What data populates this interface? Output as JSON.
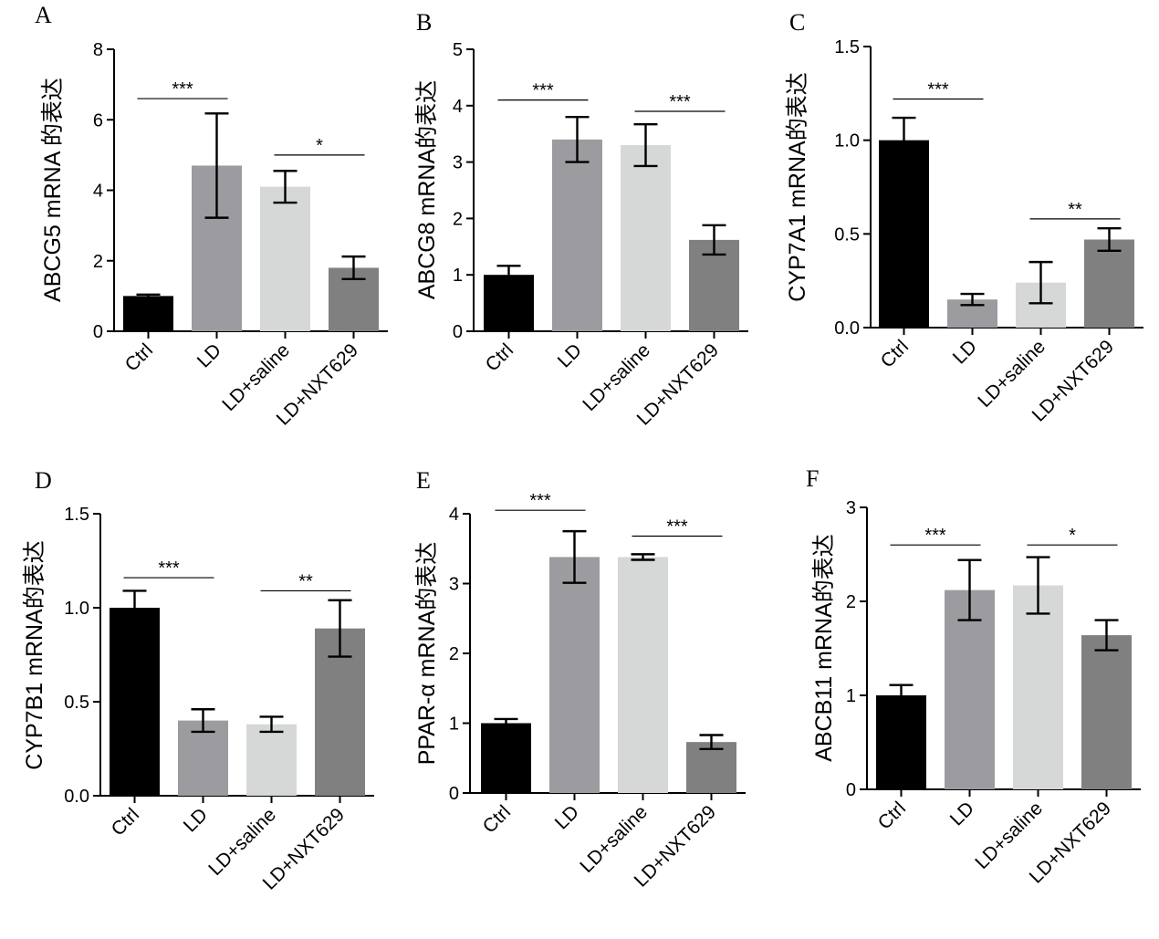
{
  "figure": {
    "panels": [
      "A",
      "B",
      "C",
      "D",
      "E",
      "F"
    ]
  },
  "chart_data": [
    {
      "panel": "A",
      "type": "bar",
      "ylabel": "ABCG5 mRNA 的表达",
      "categories": [
        "Ctrl",
        "LD",
        "LD+saline",
        "LD+NXT629"
      ],
      "values": [
        1.0,
        4.7,
        4.1,
        1.8
      ],
      "errors": [
        0.04,
        1.48,
        0.45,
        0.32
      ],
      "ylim": [
        0,
        8
      ],
      "yticks": [
        0,
        2,
        4,
        6,
        8
      ],
      "tick_labels": [
        "0",
        "2",
        "4",
        "6",
        "8"
      ],
      "colors": [
        "#000000",
        "#9c9ca0",
        "#d6d7d7",
        "#808080"
      ],
      "significance": [
        {
          "from": 0,
          "to": 1,
          "label": "***",
          "y": 6.6
        },
        {
          "from": 2,
          "to": 3,
          "label": "*",
          "y": 5.0
        }
      ]
    },
    {
      "panel": "B",
      "type": "bar",
      "ylabel": "ABCG8 mRNA的表达",
      "categories": [
        "Ctrl",
        "LD",
        "LD+saline",
        "LD+NXT629"
      ],
      "values": [
        1.0,
        3.4,
        3.3,
        1.62
      ],
      "errors": [
        0.16,
        0.4,
        0.37,
        0.26
      ],
      "ylim": [
        0,
        5
      ],
      "yticks": [
        0,
        1,
        2,
        3,
        4,
        5
      ],
      "tick_labels": [
        "0",
        "1",
        "2",
        "3",
        "4",
        "5"
      ],
      "colors": [
        "#000000",
        "#9c9ca0",
        "#d6d7d7",
        "#808080"
      ],
      "significance": [
        {
          "from": 0,
          "to": 1,
          "label": "***",
          "y": 4.1
        },
        {
          "from": 2,
          "to": 3,
          "label": "***",
          "y": 3.9
        }
      ]
    },
    {
      "panel": "C",
      "type": "bar",
      "ylabel": "CYP7A1 mRNA的表达",
      "categories": [
        "Ctrl",
        "LD",
        "LD+saline",
        "LD+NXT629"
      ],
      "values": [
        1.0,
        0.15,
        0.24,
        0.47
      ],
      "errors": [
        0.12,
        0.03,
        0.11,
        0.06
      ],
      "ylim": [
        0,
        1.5
      ],
      "yticks": [
        0,
        0.5,
        1.0,
        1.5
      ],
      "tick_labels": [
        "0.0",
        "0.5",
        "1.0",
        "1.5"
      ],
      "colors": [
        "#000000",
        "#9c9ca0",
        "#d6d7d7",
        "#808080"
      ],
      "significance": [
        {
          "from": 0,
          "to": 1,
          "label": "***",
          "y": 1.22
        },
        {
          "from": 2,
          "to": 3,
          "label": "**",
          "y": 0.58
        }
      ]
    },
    {
      "panel": "D",
      "type": "bar",
      "ylabel": "CYP7B1 mRNA的表达",
      "categories": [
        "Ctrl",
        "LD",
        "LD+saline",
        "LD+NXT629"
      ],
      "values": [
        1.0,
        0.4,
        0.38,
        0.89
      ],
      "errors": [
        0.09,
        0.06,
        0.04,
        0.15
      ],
      "ylim": [
        0,
        1.5
      ],
      "yticks": [
        0,
        0.5,
        1.0,
        1.5
      ],
      "tick_labels": [
        "0.0",
        "0.5",
        "1.0",
        "1.5"
      ],
      "colors": [
        "#000000",
        "#9c9ca0",
        "#d6d7d7",
        "#808080"
      ],
      "significance": [
        {
          "from": 0,
          "to": 1,
          "label": "***",
          "y": 1.16
        },
        {
          "from": 2,
          "to": 3,
          "label": "**",
          "y": 1.09
        }
      ]
    },
    {
      "panel": "E",
      "type": "bar",
      "ylabel": "PPAR-α mRNA的表达",
      "categories": [
        "Ctrl",
        "LD",
        "LD+saline",
        "LD+NXT629"
      ],
      "values": [
        1.0,
        3.38,
        3.38,
        0.73
      ],
      "errors": [
        0.06,
        0.37,
        0.04,
        0.1
      ],
      "ylim": [
        0,
        4
      ],
      "yticks": [
        0,
        1,
        2,
        3,
        4
      ],
      "tick_labels": [
        "0",
        "1",
        "2",
        "3",
        "4"
      ],
      "colors": [
        "#000000",
        "#9c9ca0",
        "#d6d7d7",
        "#808080"
      ],
      "significance": [
        {
          "from": 0,
          "to": 1,
          "label": "***",
          "y": 4.05
        },
        {
          "from": 2,
          "to": 3,
          "label": "***",
          "y": 3.68
        }
      ]
    },
    {
      "panel": "F",
      "type": "bar",
      "ylabel": "ABCB11 mRNA的表达",
      "categories": [
        "Ctrl",
        "LD",
        "LD+saline",
        "LD+NXT629"
      ],
      "values": [
        1.0,
        2.12,
        2.17,
        1.64
      ],
      "errors": [
        0.11,
        0.32,
        0.3,
        0.16
      ],
      "ylim": [
        0,
        3
      ],
      "yticks": [
        0,
        1,
        2,
        3
      ],
      "tick_labels": [
        "0",
        "1",
        "2",
        "3"
      ],
      "colors": [
        "#000000",
        "#9c9ca0",
        "#d6d7d7",
        "#808080"
      ],
      "significance": [
        {
          "from": 0,
          "to": 1,
          "label": "***",
          "y": 2.6
        },
        {
          "from": 2,
          "to": 3,
          "label": "*",
          "y": 2.6
        }
      ]
    }
  ]
}
